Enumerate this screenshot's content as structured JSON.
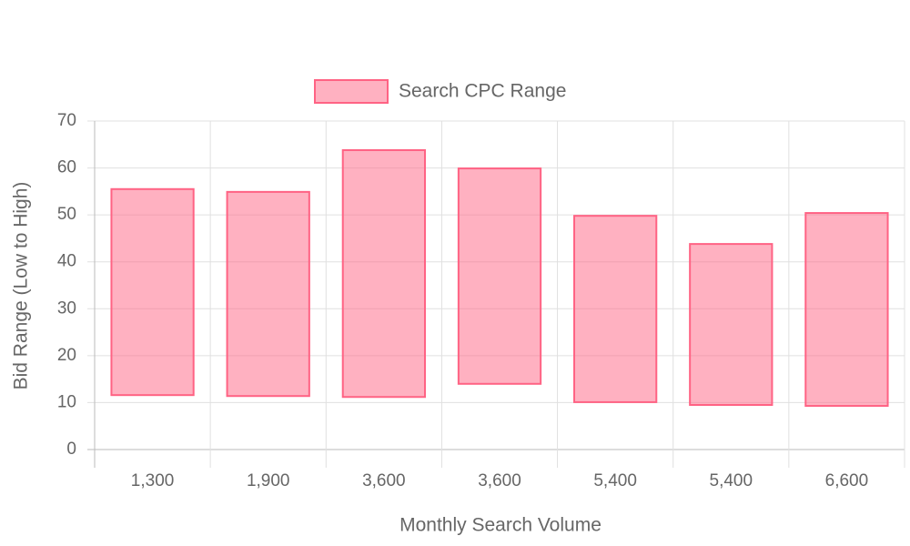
{
  "chart_data": {
    "type": "floating-bar",
    "x_label": "Monthly Search Volume",
    "y_label": "Bid Range (Low to High)",
    "categories": [
      "1,300",
      "1,900",
      "3,600",
      "3,600",
      "5,400",
      "5,400",
      "6,600"
    ],
    "series": [
      {
        "name": "Search CPC Range",
        "color": "#ff6384",
        "values": [
          [
            11.6,
            55.5
          ],
          [
            11.4,
            54.9
          ],
          [
            11.2,
            63.8
          ],
          [
            14,
            59.9
          ],
          [
            10.1,
            49.8
          ],
          [
            9.5,
            43.8
          ],
          [
            9.3,
            50.4
          ]
        ]
      }
    ],
    "ylim": [
      0,
      70
    ],
    "yticks": [
      0,
      10,
      20,
      30,
      40,
      50,
      60,
      70
    ],
    "grid": true,
    "legend": "top"
  }
}
